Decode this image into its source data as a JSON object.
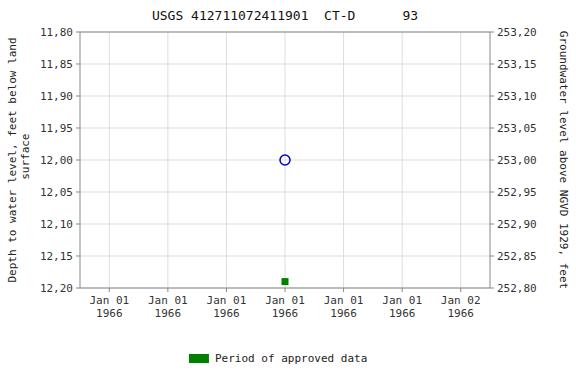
{
  "chart_data": {
    "type": "scatter",
    "title": "USGS 412711072411901  CT-D      93",
    "ylabel": "Depth to water level, feet below land\n surface",
    "y2label": "Groundwater level above NGVD 1929, feet",
    "categories": [
      "Jan 01\n1966",
      "Jan 01\n1966",
      "Jan 01\n1966",
      "Jan 01\n1966",
      "Jan 01\n1966",
      "Jan 01\n1966",
      "Jan 02\n1966"
    ],
    "series": [
      {
        "color": "#0000cc",
        "marker": "open-circle",
        "values": [
          null,
          null,
          null,
          12.0,
          null,
          null,
          null
        ]
      },
      {
        "name": "Period of approved data",
        "color": "#008000",
        "marker": "square",
        "values": [
          null,
          null,
          null,
          12.19,
          null,
          null,
          null
        ]
      }
    ],
    "ylim": [
      12.2,
      11.8
    ],
    "yticks": [
      {
        "value": 11.8,
        "label": "11,80"
      },
      {
        "value": 11.85,
        "label": "11,85"
      },
      {
        "value": 11.9,
        "label": "11,90"
      },
      {
        "value": 11.95,
        "label": "11,95"
      },
      {
        "value": 12.0,
        "label": "12,00"
      },
      {
        "value": 12.05,
        "label": "12,05"
      },
      {
        "value": 12.1,
        "label": "12,10"
      },
      {
        "value": 12.15,
        "label": "12,15"
      },
      {
        "value": 12.2,
        "label": "12,20"
      }
    ],
    "y2lim": [
      252.8,
      253.2
    ],
    "y2ticks": [
      {
        "value": 253.2,
        "label": "253,20"
      },
      {
        "value": 253.15,
        "label": "253,15"
      },
      {
        "value": 253.1,
        "label": "253,10"
      },
      {
        "value": 253.05,
        "label": "253,05"
      },
      {
        "value": 253.0,
        "label": "253,00"
      },
      {
        "value": 252.95,
        "label": "252,95"
      },
      {
        "value": 252.9,
        "label": "252,90"
      },
      {
        "value": 252.85,
        "label": "252,85"
      },
      {
        "value": 252.8,
        "label": "252,80"
      }
    ],
    "grid": true,
    "legend": "bottom"
  }
}
